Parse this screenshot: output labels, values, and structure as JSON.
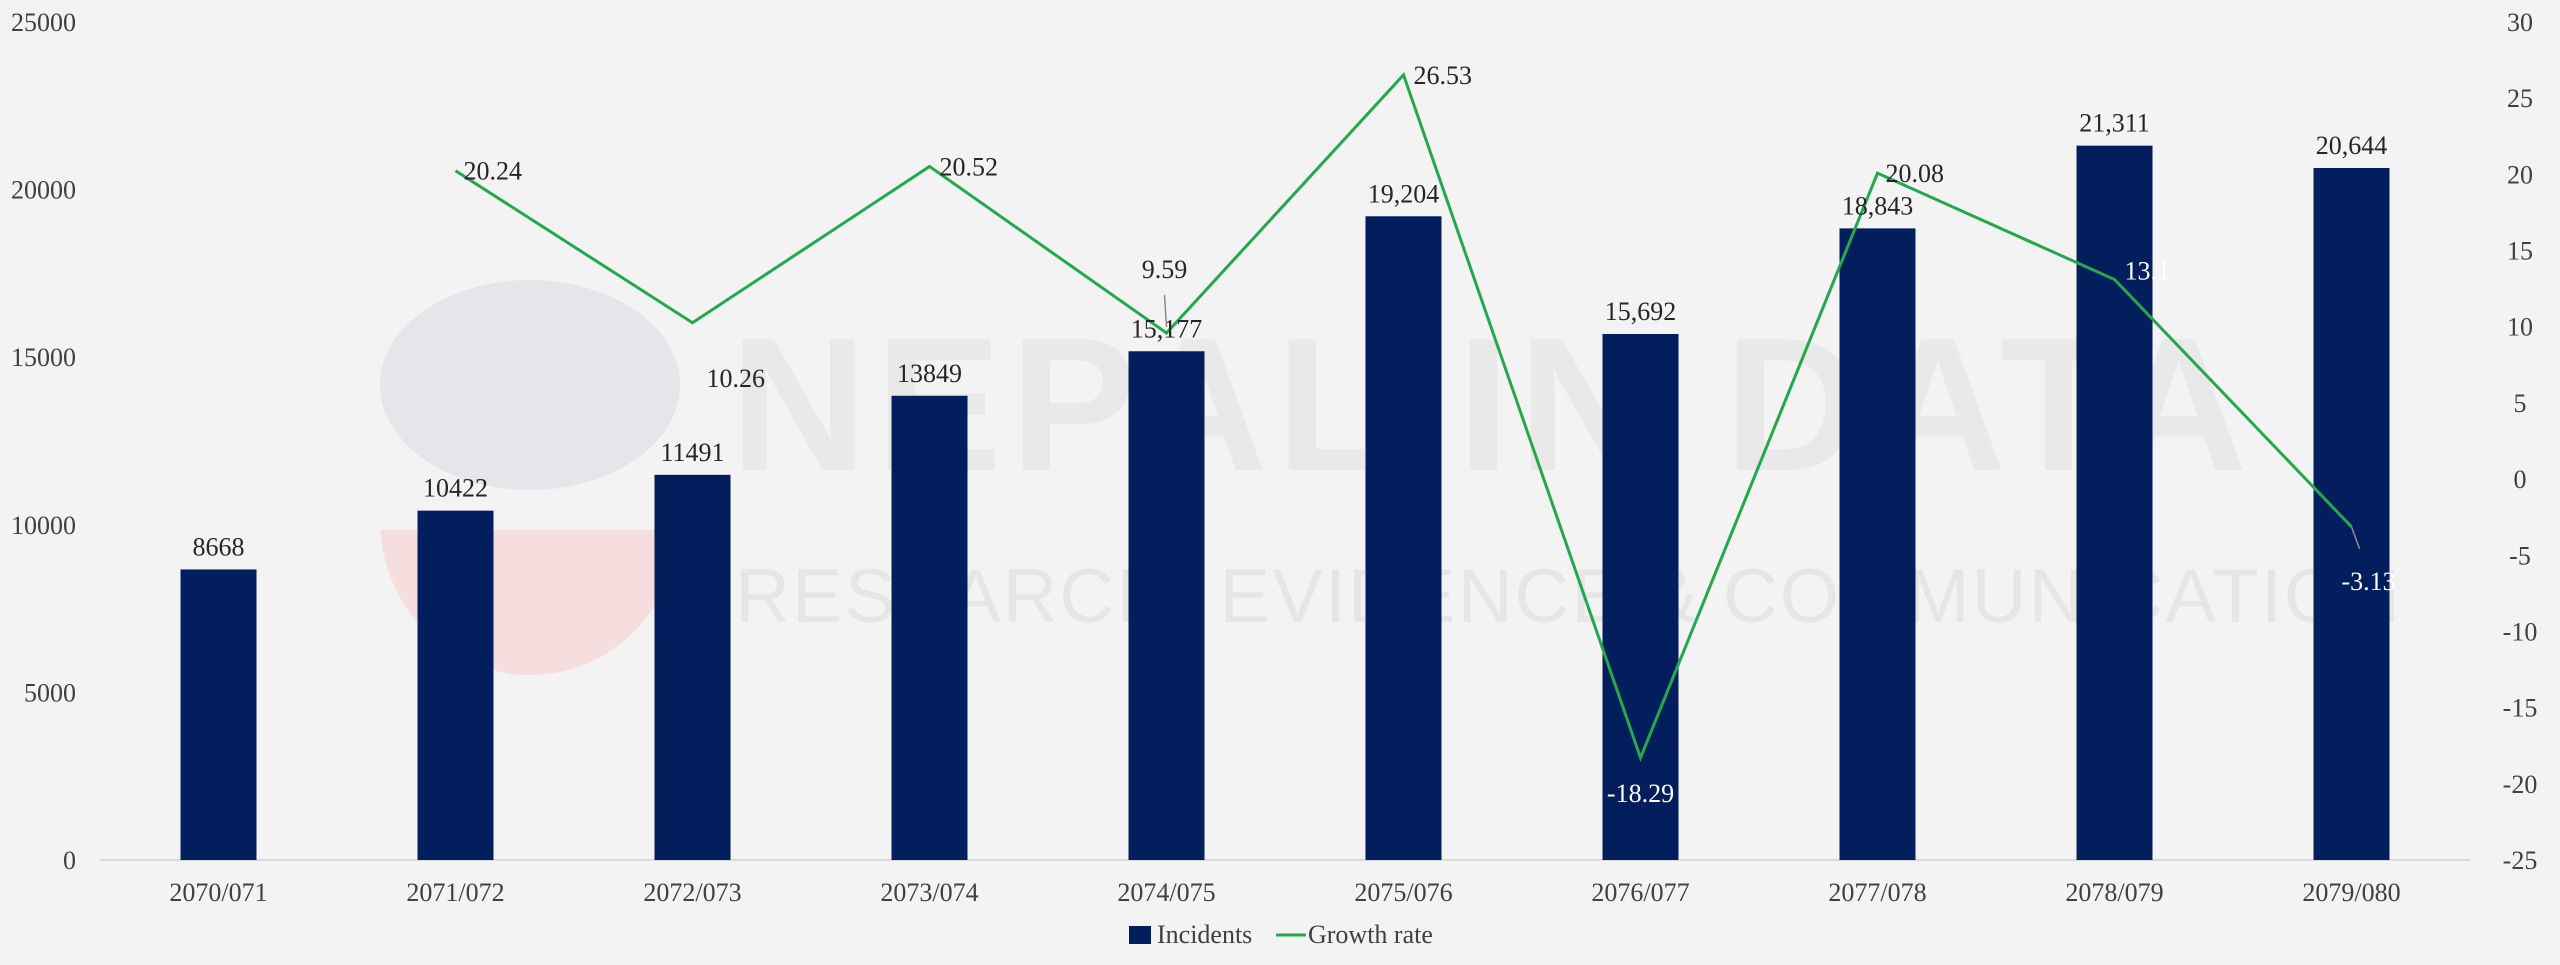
{
  "chart_data": {
    "type": "bar",
    "categories": [
      "2070/071",
      "2071/072",
      "2072/073",
      "2073/074",
      "2074/075",
      "2075/076",
      "2076/077",
      "2077/078",
      "2078/079",
      "2079/080"
    ],
    "series": [
      {
        "name": "Incidents",
        "type": "bar",
        "axis": "left",
        "values": [
          8668,
          10422,
          11491,
          13849,
          15177,
          19204,
          15692,
          18843,
          21311,
          20644
        ],
        "labels": [
          "8668",
          "10422",
          "11491",
          "13849",
          "15,177",
          "19,204",
          "15,692",
          "18,843",
          "21,311",
          "20,644"
        ],
        "color": "#031e5c"
      },
      {
        "name": "Growth rate",
        "type": "line",
        "axis": "right",
        "values": [
          null,
          20.24,
          10.26,
          20.52,
          9.59,
          26.53,
          -18.29,
          20.08,
          13.1,
          -3.13
        ],
        "labels": [
          "",
          "20.24",
          "10.26",
          "20.52",
          "9.59",
          "26.53",
          "-18.29",
          "20.08",
          "13.1",
          "-3.13"
        ],
        "color": "#24a84e"
      }
    ],
    "y_left": {
      "min": 0,
      "max": 25000,
      "step": 5000,
      "ticks": [
        "0",
        "5000",
        "10000",
        "15000",
        "20000",
        "25000"
      ]
    },
    "y_right": {
      "min": -25,
      "max": 30,
      "step": 5,
      "ticks": [
        "-25",
        "-20",
        "-15",
        "-10",
        "-5",
        "0",
        "5",
        "10",
        "15",
        "20",
        "25",
        "30"
      ]
    },
    "grid": false,
    "legend": "bottom-center",
    "watermark": {
      "title": "NEPAL IN DATA",
      "subtitle": "RESEARCH, EVIDENCE & COMMUNICATION"
    }
  }
}
